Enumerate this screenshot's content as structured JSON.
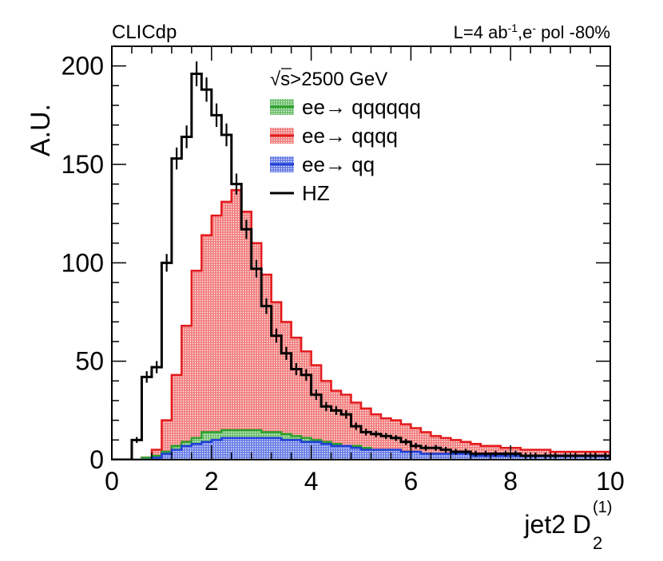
{
  "header": {
    "left": "CLICdp",
    "right_lumi": "L=4 ab",
    "right_lumi_sup": "-1",
    "right_beam": ",e",
    "right_beam_sup": "-",
    "right_pol": " pol -80%"
  },
  "chart_data": {
    "type": "area",
    "ylabel": "A.U.",
    "xlabel_main": "jet2 D",
    "xlabel_sub": "2",
    "xlabel_sup": "(1)",
    "xlim": [
      0,
      10
    ],
    "ylim": [
      0,
      210
    ],
    "x_ticks": [
      "0",
      "2",
      "4",
      "6",
      "8",
      "10"
    ],
    "y_ticks": [
      "0",
      "50",
      "100",
      "150",
      "200"
    ],
    "legend": {
      "title_root": "√",
      "title_rest": "s>2500 GeV",
      "entries": [
        "ee→ qqqqqq",
        "ee→ qqqq",
        "ee→ qq",
        "HZ"
      ]
    },
    "bin_width": 0.2,
    "bin_edges_start": 0,
    "series": [
      {
        "name": "ee→ qqqqqq",
        "color": "#2ca02c",
        "values": [
          0,
          0,
          0,
          1,
          2,
          4,
          7,
          9,
          11,
          14,
          14,
          15,
          15,
          15,
          15,
          14,
          14,
          13,
          12,
          11,
          10,
          9,
          8,
          7,
          7,
          6,
          5,
          5,
          4,
          4,
          4,
          3,
          3,
          3,
          3,
          2,
          2,
          2,
          2,
          2,
          2,
          2,
          2,
          2,
          2,
          2,
          2,
          2,
          2,
          2
        ]
      },
      {
        "name": "ee→ qqqq",
        "color": "#e41a1c",
        "values": [
          0,
          0,
          0,
          1,
          5,
          20,
          43,
          68,
          96,
          114,
          124,
          131,
          137,
          126,
          110,
          94,
          80,
          70,
          62,
          55,
          48,
          40,
          35,
          33,
          29,
          26,
          23,
          21,
          20,
          18,
          16,
          14,
          12,
          11,
          10,
          9,
          8,
          7,
          7,
          6,
          6,
          5,
          5,
          5,
          4,
          4,
          4,
          4,
          4,
          4
        ]
      },
      {
        "name": "ee→ qq",
        "color": "#1f3fd6",
        "values": [
          0,
          0,
          0,
          0,
          1,
          3,
          5,
          7,
          8,
          9,
          10,
          11,
          11,
          11,
          11,
          11,
          11,
          10,
          10,
          9,
          9,
          8,
          7,
          7,
          6,
          5,
          5,
          5,
          5,
          4,
          4,
          3,
          3,
          3,
          3,
          3,
          2,
          2,
          2,
          2,
          2,
          2,
          2,
          2,
          2,
          2,
          2,
          2,
          2,
          2
        ]
      },
      {
        "name": "HZ",
        "color": "#000000",
        "values": [
          0,
          0,
          10,
          42,
          47,
          100,
          153,
          164,
          196,
          188,
          175,
          165,
          140,
          117,
          97,
          78,
          63,
          54,
          46,
          43,
          33,
          27,
          25,
          23,
          17,
          14,
          13,
          12,
          11,
          9,
          7,
          6,
          6,
          5,
          4,
          4,
          3,
          3,
          3,
          3,
          3,
          2,
          2,
          2,
          2,
          2,
          2,
          2,
          2,
          2
        ]
      }
    ]
  }
}
